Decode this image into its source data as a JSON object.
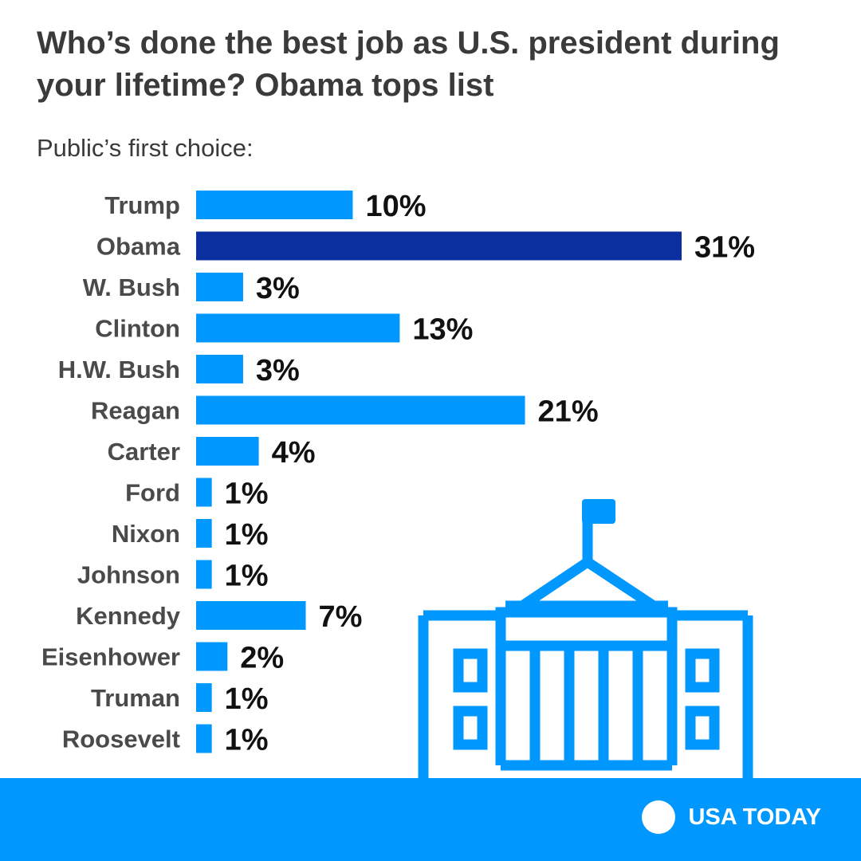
{
  "header": {
    "title": "Who’s done the best job as U.S. president during your lifetime? Obama tops list",
    "subtitle": "Public’s first choice:"
  },
  "chart_data": {
    "type": "bar",
    "orientation": "horizontal",
    "title": "Who’s done the best job as U.S. president during your lifetime? Obama tops list",
    "subtitle": "Public’s first choice:",
    "categories": [
      "Trump",
      "Obama",
      "W. Bush",
      "Clinton",
      "H.W. Bush",
      "Reagan",
      "Carter",
      "Ford",
      "Nixon",
      "Johnson",
      "Kennedy",
      "Eisenhower",
      "Truman",
      "Roosevelt"
    ],
    "values": [
      10,
      31,
      3,
      13,
      3,
      21,
      4,
      1,
      1,
      1,
      7,
      2,
      1,
      1
    ],
    "value_labels": [
      "10%",
      "31%",
      "3%",
      "13%",
      "3%",
      "21%",
      "4%",
      "1%",
      "1%",
      "1%",
      "7%",
      "2%",
      "1%",
      "1%"
    ],
    "highlight_category": "Obama",
    "xlim": [
      0,
      31
    ],
    "unit": "%"
  },
  "colors": {
    "bar": "#0098ff",
    "highlight": "#0b2f9e",
    "footer": "#0098ff",
    "icon": "#0098ff"
  },
  "footer": {
    "brand": "USA TODAY",
    "icon": "capitol-building-icon"
  }
}
